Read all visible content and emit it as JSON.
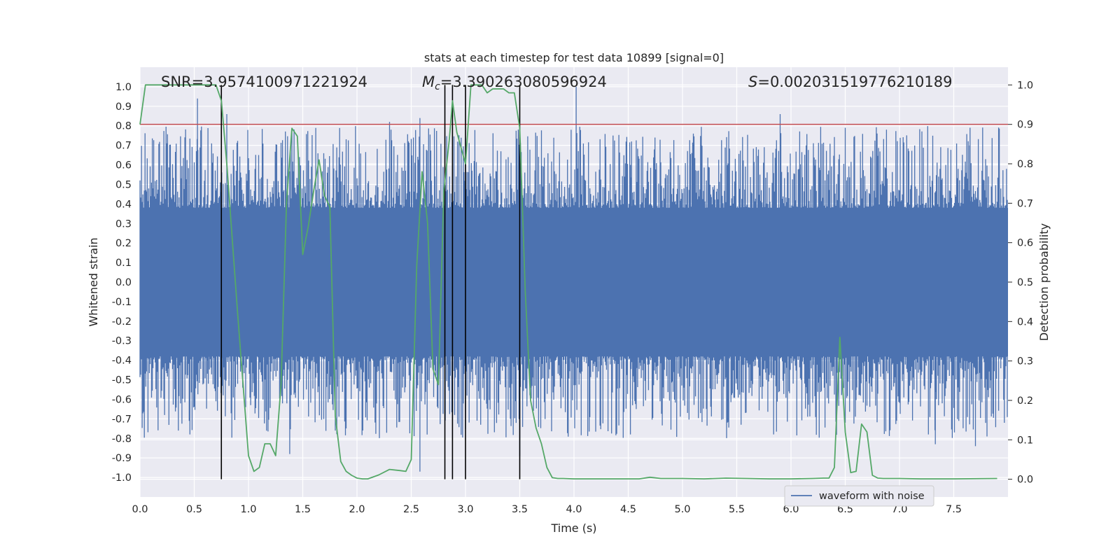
{
  "chart_data": {
    "type": "line",
    "title": "stats at each timestep for test data 10899 [signal=0]",
    "xlabel": "Time (s)",
    "ylabel": "Whitened strain",
    "y2label": "Detection probability",
    "xlim": [
      0.0,
      8.0
    ],
    "ylim": [
      -1.1,
      1.1
    ],
    "y2lim": [
      -0.045,
      1.045
    ],
    "grid": true,
    "legend_position": "bottom-right",
    "x_ticks": [
      "0.0",
      "0.5",
      "1.0",
      "1.5",
      "2.0",
      "2.5",
      "3.0",
      "3.5",
      "4.0",
      "4.5",
      "5.0",
      "5.5",
      "6.0",
      "6.5",
      "7.0",
      "7.5"
    ],
    "y_ticks": [
      "1.0",
      "0.9",
      "0.8",
      "0.7",
      "0.6",
      "0.5",
      "0.4",
      "0.3",
      "0.2",
      "0.1",
      "0.0",
      "-0.1",
      "-0.2",
      "-0.3",
      "-0.4",
      "-0.5",
      "-0.6",
      "-0.7",
      "-0.8",
      "-0.9",
      "-1.0"
    ],
    "y2_ticks": [
      "1.0",
      "0.9",
      "0.8",
      "0.7",
      "0.6",
      "0.5",
      "0.4",
      "0.3",
      "0.2",
      "0.1",
      "0.0"
    ],
    "annotations": {
      "snr": "SNR=3.9574100971221924",
      "mc_symbol": "M",
      "mc_sub": "c",
      "mc_value": "=3.390263080596924",
      "s_symbol": "S",
      "s_value": "=0.002031519776210189"
    },
    "threshold": {
      "y2": 0.9,
      "color": "#c44e52"
    },
    "vertical_markers": [
      0.75,
      2.81,
      2.88,
      3.0,
      3.5
    ],
    "series": [
      {
        "name": "waveform with noise",
        "axis": "left",
        "color": "#4c72b0",
        "band_envelope": 0.38,
        "spikes": [
          [
            0.53,
            0.94
          ],
          [
            0.8,
            0.86
          ],
          [
            0.63,
            -0.52
          ],
          [
            1.47,
            0.64
          ],
          [
            1.38,
            -0.88
          ],
          [
            1.8,
            -0.76
          ],
          [
            2.3,
            0.82
          ],
          [
            2.58,
            0.84
          ],
          [
            2.58,
            -0.97
          ],
          [
            3.5,
            0.79
          ],
          [
            3.5,
            -0.89
          ],
          [
            4.02,
            1.0
          ],
          [
            4.53,
            0.72
          ],
          [
            5.9,
            0.86
          ],
          [
            6.5,
            0.79
          ],
          [
            6.5,
            -0.72
          ],
          [
            7.33,
            -0.83
          ],
          [
            7.7,
            -0.84
          ],
          [
            7.65,
            0.79
          ]
        ]
      },
      {
        "name": "detection probability",
        "axis": "right",
        "color": "#55a868",
        "x": [
          0.0,
          0.05,
          0.1,
          0.2,
          0.3,
          0.4,
          0.5,
          0.6,
          0.7,
          0.75,
          0.8,
          0.9,
          1.0,
          1.05,
          1.1,
          1.15,
          1.2,
          1.25,
          1.3,
          1.35,
          1.4,
          1.45,
          1.5,
          1.55,
          1.6,
          1.65,
          1.7,
          1.75,
          1.8,
          1.85,
          1.9,
          1.95,
          2.0,
          2.05,
          2.1,
          2.2,
          2.3,
          2.4,
          2.45,
          2.5,
          2.55,
          2.6,
          2.65,
          2.7,
          2.75,
          2.8,
          2.85,
          2.88,
          2.92,
          2.96,
          3.0,
          3.05,
          3.1,
          3.15,
          3.2,
          3.25,
          3.3,
          3.35,
          3.4,
          3.45,
          3.5,
          3.55,
          3.6,
          3.65,
          3.7,
          3.75,
          3.8,
          3.85,
          3.9,
          4.0,
          4.2,
          4.4,
          4.6,
          4.7,
          4.8,
          5.0,
          5.2,
          5.4,
          5.6,
          5.8,
          6.0,
          6.2,
          6.3,
          6.35,
          6.4,
          6.45,
          6.5,
          6.55,
          6.6,
          6.65,
          6.7,
          6.75,
          6.8,
          6.85,
          6.9,
          7.0,
          7.2,
          7.5,
          7.9
        ],
        "values": [
          0.9,
          1.0,
          1.0,
          1.0,
          1.0,
          1.0,
          1.0,
          1.0,
          1.0,
          0.96,
          0.8,
          0.42,
          0.06,
          0.02,
          0.03,
          0.09,
          0.09,
          0.06,
          0.24,
          0.7,
          0.89,
          0.87,
          0.57,
          0.64,
          0.73,
          0.81,
          0.72,
          0.69,
          0.16,
          0.045,
          0.02,
          0.01,
          0.003,
          0.001,
          0.001,
          0.011,
          0.025,
          0.022,
          0.02,
          0.05,
          0.54,
          0.78,
          0.65,
          0.28,
          0.24,
          0.73,
          0.86,
          0.96,
          0.88,
          0.84,
          0.8,
          1.0,
          1.0,
          1.0,
          0.98,
          0.99,
          0.99,
          0.99,
          0.98,
          0.98,
          0.89,
          0.48,
          0.2,
          0.13,
          0.09,
          0.03,
          0.004,
          0.002,
          0.002,
          0.001,
          0.001,
          0.001,
          0.001,
          0.005,
          0.002,
          0.002,
          0.001,
          0.003,
          0.002,
          0.001,
          0.001,
          0.002,
          0.003,
          0.003,
          0.03,
          0.36,
          0.12,
          0.017,
          0.02,
          0.14,
          0.12,
          0.01,
          0.003,
          0.002,
          0.002,
          0.002,
          0.001,
          0.001,
          0.002
        ]
      }
    ]
  },
  "legend": {
    "label": "waveform with noise"
  }
}
